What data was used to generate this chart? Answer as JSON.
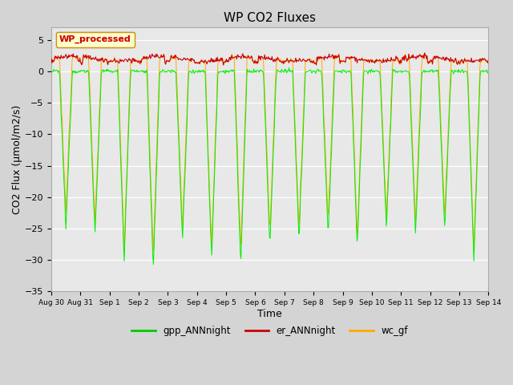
{
  "title": "WP CO2 Fluxes",
  "xlabel": "Time",
  "ylabel": "CO2 Flux (μmol/m2/s)",
  "ylim": [
    -35,
    7
  ],
  "yticks": [
    -35,
    -30,
    -25,
    -20,
    -15,
    -10,
    -5,
    0,
    5
  ],
  "plot_bg_color": "#e8e8e8",
  "fig_bg_color": "#d4d4d4",
  "legend_label": "WP_processed",
  "gpp_color": "#00ee00",
  "er_color": "#cc0000",
  "wc_color": "#ffaa00",
  "legend_gpp_color": "#00cc00",
  "legend_er_color": "#cc0000",
  "legend_wc_color": "#ffaa00",
  "n_days": 15,
  "points_per_day": 48,
  "tick_labels": [
    "Aug 30",
    "Aug 31",
    "Sep 1",
    "Sep 2",
    "Sep 3",
    "Sep 4",
    "Sep 5",
    "Sep 6",
    "Sep 7",
    "Sep 8",
    "Sep 9",
    "Sep 10",
    "Sep 11",
    "Sep 12",
    "Sep 13",
    "Sep 14"
  ]
}
